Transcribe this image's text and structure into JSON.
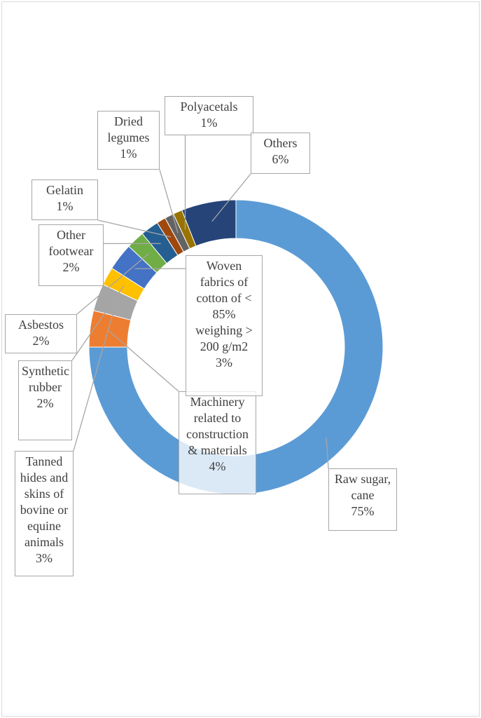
{
  "chart_data": {
    "type": "donut",
    "categories": [
      "Raw sugar, cane",
      "Machinery related to construction & materials",
      "Tanned hides and skins of bovine or equine animals",
      "Synthetic rubber",
      "Woven fabrics of cotton of < 85% weighing > 200 g/m2",
      "Asbestos",
      "Other footwear",
      "Gelatin",
      "Dried legumes",
      "Polyacetals",
      "Others"
    ],
    "values": [
      75,
      4,
      3,
      2,
      3,
      2,
      2,
      1,
      1,
      1,
      6
    ],
    "value_labels": [
      "75%",
      "4%",
      "3%",
      "2%",
      "3%",
      "2%",
      "2%",
      "1%",
      "1%",
      "1%",
      "6%"
    ],
    "colors": [
      "#5b9bd5",
      "#ed7d31",
      "#a5a5a5",
      "#ffc000",
      "#4472c4",
      "#70ad47",
      "#255e91",
      "#9e480e",
      "#636363",
      "#997300",
      "#264478"
    ]
  }
}
